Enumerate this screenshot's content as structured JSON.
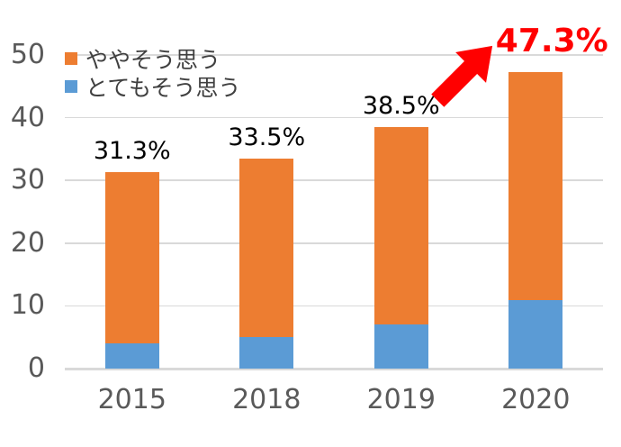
{
  "chart_data": {
    "type": "bar",
    "stacked": true,
    "title": "",
    "categories": [
      "2015",
      "2018",
      "2019",
      "2020"
    ],
    "series": [
      {
        "name": "とてもそう思う",
        "color": "#5B9BD5",
        "values": [
          4.0,
          5.0,
          7.1,
          10.9
        ]
      },
      {
        "name": "ややそう思う",
        "color": "#ED7D31",
        "values": [
          27.3,
          28.5,
          31.4,
          36.4
        ]
      }
    ],
    "totals": [
      31.3,
      33.5,
      38.5,
      47.3
    ],
    "total_labels": [
      "31.3%",
      "33.5%",
      "38.5%",
      "47.3%"
    ],
    "highlight": {
      "index": 3,
      "label": "47.3%",
      "color": "#FF0000",
      "annotation": "red-arrow-up-right"
    },
    "ylim": [
      0,
      50
    ],
    "yticks": [
      0,
      10,
      20,
      30,
      40,
      50
    ],
    "ytick_labels": [
      "0",
      "10",
      "20",
      "30",
      "40",
      "50"
    ],
    "grid": true,
    "legend_position": "top-left",
    "legend": [
      {
        "label": "ややそう思う",
        "color": "#ED7D31"
      },
      {
        "label": "とてもそう思う",
        "color": "#5B9BD5"
      }
    ],
    "colors": {
      "gridline": "#D9D9D9",
      "axis_text": "#595959",
      "data_label": "#000000",
      "background": "#FFFFFF"
    }
  }
}
